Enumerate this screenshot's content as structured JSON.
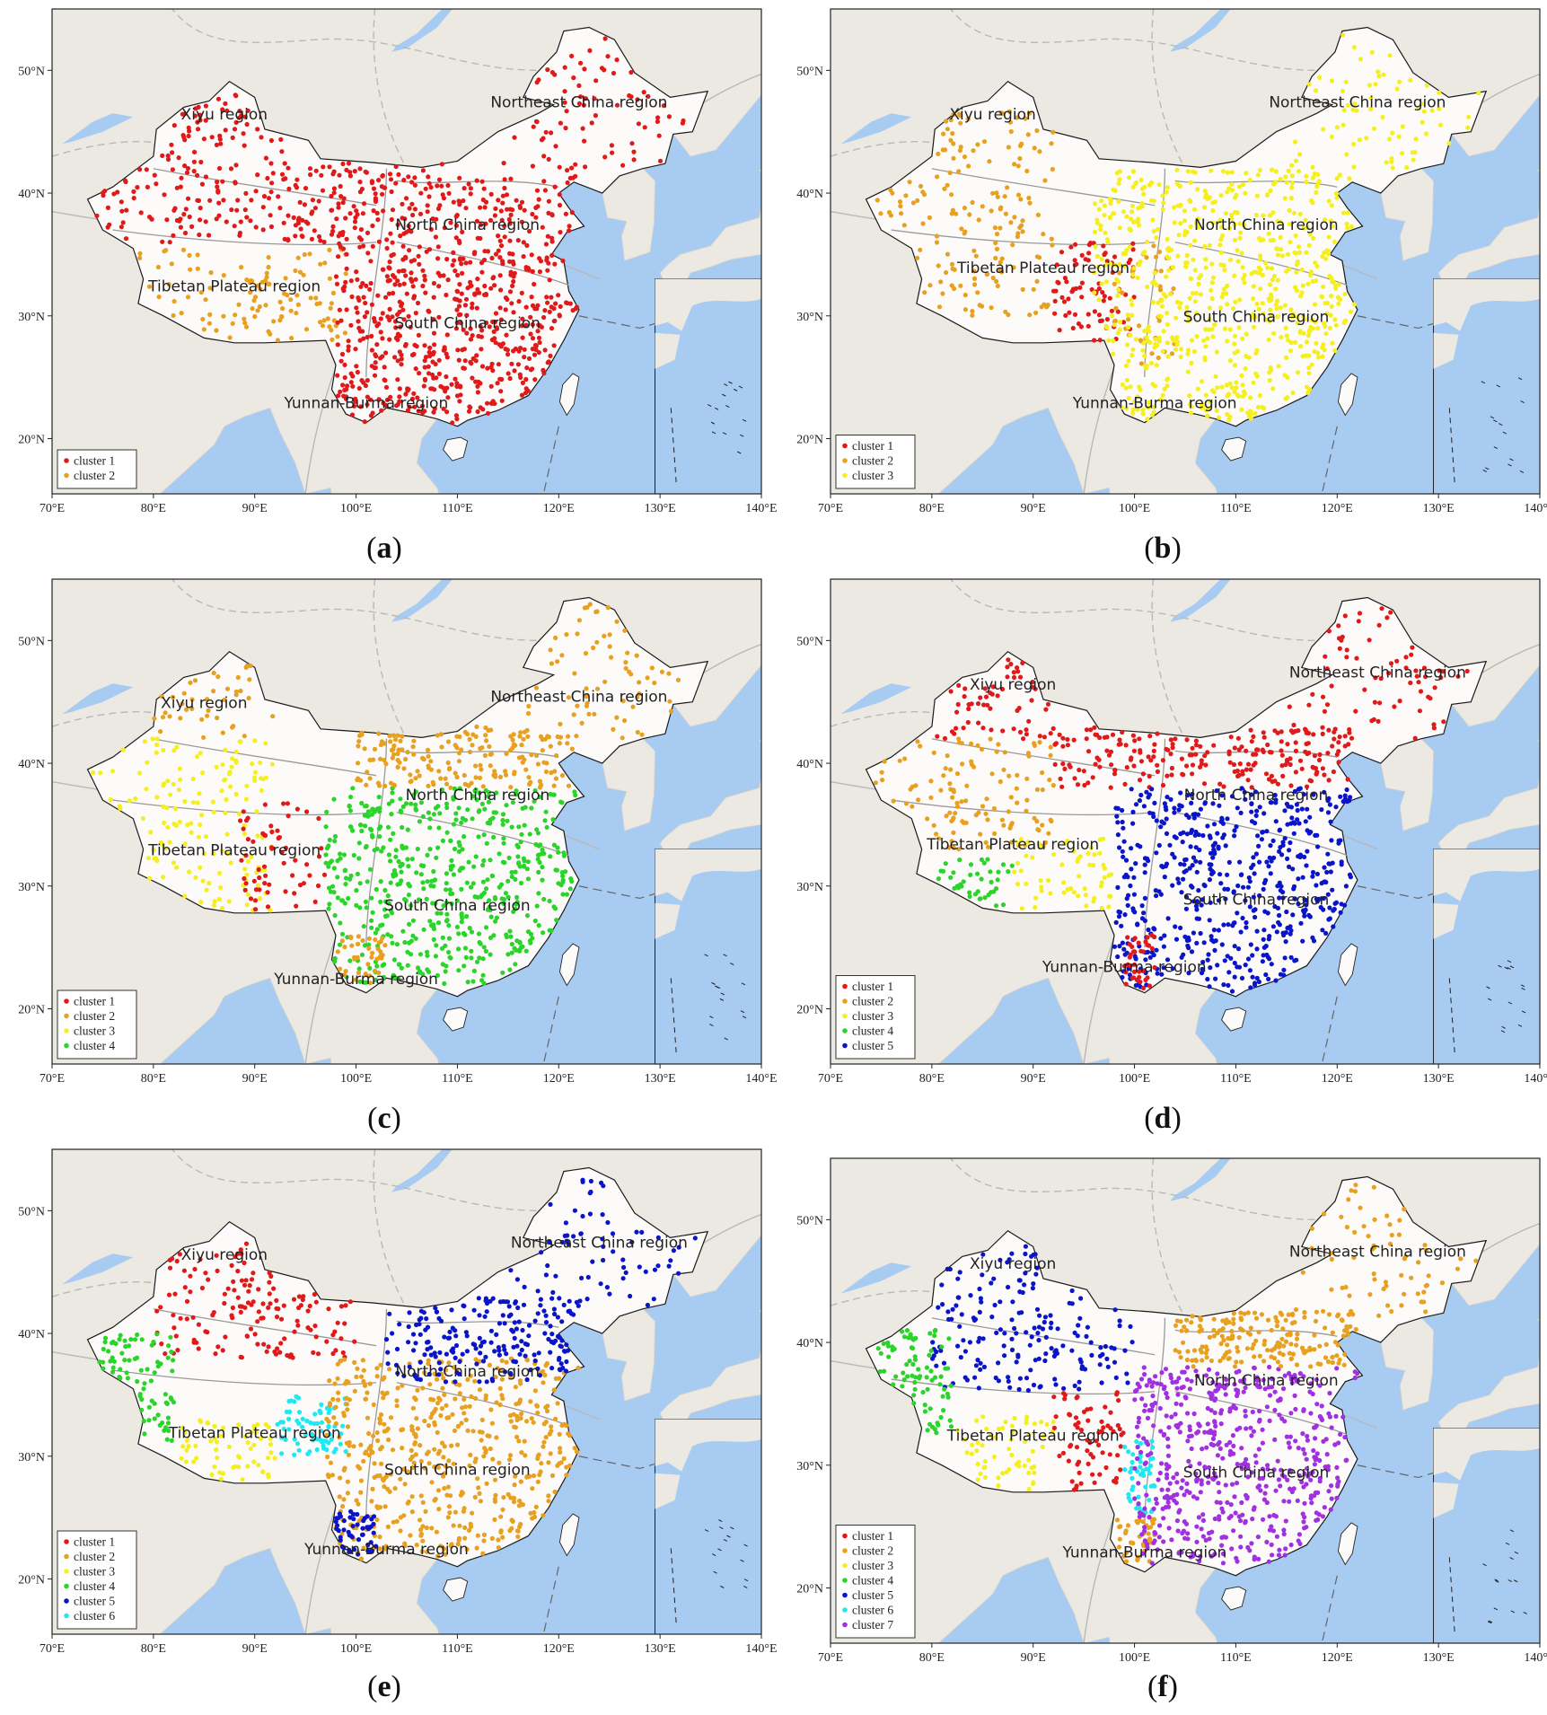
{
  "axes": {
    "x_ticks": [
      "70°E",
      "80°E",
      "90°E",
      "100°E",
      "110°E",
      "120°E",
      "130°E",
      "140°E"
    ],
    "y_ticks": [
      "20°N",
      "30°N",
      "40°N",
      "50°N"
    ],
    "lon_range": [
      70,
      140
    ],
    "lat_range": [
      15.5,
      55
    ]
  },
  "colors": {
    "ocean": "#a8cbf2",
    "land_outside": "#ece9e3",
    "china_land": "#fdfbfa",
    "clusters": {
      "cluster 1": "#e01a1a",
      "cluster 2": "#e8a020",
      "cluster 3": "#f5ef20",
      "cluster 4": "#2bd42b",
      "cluster 5": "#0a14c8",
      "cluster 6": "#20e8f0",
      "cluster 7": "#a030e0"
    }
  },
  "region_names": {
    "xiyu": "Xiyu region",
    "northeast": "Northeast China region",
    "north": "North China region",
    "tibet": "Tibetan Plateau region",
    "south": "South China region",
    "yunnan": "Yunnan-Burma region"
  },
  "panels": [
    {
      "id": "a",
      "caption": "a",
      "legend": [
        "cluster 1",
        "cluster 2"
      ],
      "regions": {
        "xiyu": [
          87,
          46
        ],
        "northeast": [
          122,
          47
        ],
        "north": [
          111,
          37
        ],
        "tibet": [
          88,
          32
        ],
        "south": [
          111,
          29
        ],
        "yunnan": [
          101,
          22.5
        ]
      },
      "zones": [
        {
          "c": "cluster 2",
          "lon": [
            74,
            99
          ],
          "lat": [
            28,
            35.5
          ],
          "n": 110
        },
        {
          "c": "cluster 1",
          "lon": [
            74,
            93
          ],
          "lat": [
            36,
            48
          ],
          "n": 170
        },
        {
          "c": "cluster 1",
          "lon": [
            93,
            122
          ],
          "lat": [
            36,
            42.5
          ],
          "n": 260
        },
        {
          "c": "cluster 1",
          "lon": [
            98,
            122
          ],
          "lat": [
            21,
            36
          ],
          "n": 560
        },
        {
          "c": "cluster 1",
          "lon": [
            115,
            134
          ],
          "lat": [
            42,
            53
          ],
          "n": 70
        }
      ]
    },
    {
      "id": "b",
      "caption": "b",
      "legend": [
        "cluster 1",
        "cluster 2",
        "cluster 3"
      ],
      "regions": {
        "xiyu": [
          86,
          46
        ],
        "northeast": [
          122,
          47
        ],
        "north": [
          113,
          37
        ],
        "tibet": [
          91,
          33.5
        ],
        "south": [
          112,
          29.5
        ],
        "yunnan": [
          102,
          22.5
        ]
      },
      "zones": [
        {
          "c": "cluster 2",
          "lon": [
            74,
            92
          ],
          "lat": [
            30,
            47
          ],
          "n": 170
        },
        {
          "c": "cluster 1",
          "lon": [
            92,
            100
          ],
          "lat": [
            28,
            36
          ],
          "n": 80
        },
        {
          "c": "cluster 2",
          "lon": [
            98,
            104
          ],
          "lat": [
            26,
            36
          ],
          "n": 40
        },
        {
          "c": "cluster 3",
          "lon": [
            96,
            122
          ],
          "lat": [
            21,
            42
          ],
          "n": 680
        },
        {
          "c": "cluster 3",
          "lon": [
            115,
            134
          ],
          "lat": [
            42,
            53
          ],
          "n": 70
        }
      ]
    },
    {
      "id": "c",
      "caption": "c",
      "legend": [
        "cluster 1",
        "cluster 2",
        "cluster 3",
        "cluster 4"
      ],
      "regions": {
        "xiyu": [
          85,
          44.5
        ],
        "northeast": [
          122,
          45
        ],
        "north": [
          112,
          37
        ],
        "tibet": [
          88,
          32.5
        ],
        "south": [
          110,
          28
        ],
        "yunnan": [
          100,
          22
        ]
      },
      "zones": [
        {
          "c": "cluster 2",
          "lon": [
            80,
            92
          ],
          "lat": [
            42,
            48
          ],
          "n": 40
        },
        {
          "c": "cluster 3",
          "lon": [
            74,
            92
          ],
          "lat": [
            28,
            42
          ],
          "n": 150
        },
        {
          "c": "cluster 1",
          "lon": [
            88,
            97
          ],
          "lat": [
            28,
            37
          ],
          "n": 60
        },
        {
          "c": "cluster 4",
          "lon": [
            97,
            122
          ],
          "lat": [
            22,
            38
          ],
          "n": 560
        },
        {
          "c": "cluster 2",
          "lon": [
            100,
            122
          ],
          "lat": [
            38,
            43
          ],
          "n": 180
        },
        {
          "c": "cluster 2",
          "lon": [
            98,
            103
          ],
          "lat": [
            22,
            26
          ],
          "n": 40
        },
        {
          "c": "cluster 2",
          "lon": [
            115,
            134
          ],
          "lat": [
            42,
            53
          ],
          "n": 70
        }
      ]
    },
    {
      "id": "d",
      "caption": "d",
      "legend": [
        "cluster 1",
        "cluster 2",
        "cluster 3",
        "cluster 4",
        "cluster 5"
      ],
      "regions": {
        "xiyu": [
          88,
          46
        ],
        "northeast": [
          124,
          47
        ],
        "north": [
          112,
          37
        ],
        "tibet": [
          88,
          33
        ],
        "south": [
          112,
          28.5
        ],
        "yunnan": [
          99,
          23
        ]
      },
      "zones": [
        {
          "c": "cluster 1",
          "lon": [
            80,
            92
          ],
          "lat": [
            42,
            49
          ],
          "n": 60
        },
        {
          "c": "cluster 2",
          "lon": [
            74,
            92
          ],
          "lat": [
            33,
            42
          ],
          "n": 120
        },
        {
          "c": "cluster 4",
          "lon": [
            80,
            88
          ],
          "lat": [
            28,
            32.5
          ],
          "n": 40
        },
        {
          "c": "cluster 3",
          "lon": [
            88,
            98
          ],
          "lat": [
            28,
            34
          ],
          "n": 60
        },
        {
          "c": "cluster 1",
          "lon": [
            92,
            122
          ],
          "lat": [
            38,
            43
          ],
          "n": 220
        },
        {
          "c": "cluster 5",
          "lon": [
            98,
            122
          ],
          "lat": [
            21,
            38
          ],
          "n": 560
        },
        {
          "c": "cluster 1",
          "lon": [
            99,
            102
          ],
          "lat": [
            21,
            26
          ],
          "n": 40
        },
        {
          "c": "cluster 1",
          "lon": [
            115,
            134
          ],
          "lat": [
            42,
            53
          ],
          "n": 70
        }
      ]
    },
    {
      "id": "e",
      "caption": "e",
      "legend": [
        "cluster 1",
        "cluster 2",
        "cluster 3",
        "cluster 4",
        "cluster 5",
        "cluster 6"
      ],
      "regions": {
        "xiyu": [
          87,
          46
        ],
        "northeast": [
          124,
          47
        ],
        "north": [
          111,
          36.5
        ],
        "tibet": [
          90,
          31.5
        ],
        "south": [
          110,
          28.5
        ],
        "yunnan": [
          103,
          22
        ]
      },
      "zones": [
        {
          "c": "cluster 1",
          "lon": [
            80,
            100
          ],
          "lat": [
            38,
            48
          ],
          "n": 150
        },
        {
          "c": "cluster 4",
          "lon": [
            74,
            82
          ],
          "lat": [
            30,
            40
          ],
          "n": 80
        },
        {
          "c": "cluster 3",
          "lon": [
            82,
            92
          ],
          "lat": [
            28,
            33
          ],
          "n": 60
        },
        {
          "c": "cluster 6",
          "lon": [
            92,
            99
          ],
          "lat": [
            30,
            35
          ],
          "n": 70
        },
        {
          "c": "cluster 2",
          "lon": [
            97,
            122
          ],
          "lat": [
            21,
            38
          ],
          "n": 520
        },
        {
          "c": "cluster 5",
          "lon": [
            103,
            122
          ],
          "lat": [
            36,
            43
          ],
          "n": 200
        },
        {
          "c": "cluster 5",
          "lon": [
            98,
            102
          ],
          "lat": [
            22,
            25.5
          ],
          "n": 50
        },
        {
          "c": "cluster 5",
          "lon": [
            115,
            134
          ],
          "lat": [
            42,
            53
          ],
          "n": 70
        }
      ]
    },
    {
      "id": "f",
      "caption": "f",
      "legend": [
        "cluster 1",
        "cluster 2",
        "cluster 3",
        "cluster 4",
        "cluster 5",
        "cluster 6",
        "cluster 7"
      ],
      "regions": {
        "xiyu": [
          88,
          46
        ],
        "northeast": [
          124,
          47
        ],
        "north": [
          113,
          36.5
        ],
        "tibet": [
          90,
          32
        ],
        "south": [
          112,
          29
        ],
        "yunnan": [
          101,
          22.5
        ]
      },
      "zones": [
        {
          "c": "cluster 5",
          "lon": [
            80,
            100
          ],
          "lat": [
            36,
            48
          ],
          "n": 180
        },
        {
          "c": "cluster 4",
          "lon": [
            74,
            82
          ],
          "lat": [
            32,
            41
          ],
          "n": 80
        },
        {
          "c": "cluster 3",
          "lon": [
            82,
            92
          ],
          "lat": [
            28,
            34
          ],
          "n": 60
        },
        {
          "c": "cluster 1",
          "lon": [
            92,
            99
          ],
          "lat": [
            28,
            36
          ],
          "n": 70
        },
        {
          "c": "cluster 6",
          "lon": [
            99,
            102
          ],
          "lat": [
            26,
            32
          ],
          "n": 50
        },
        {
          "c": "cluster 2",
          "lon": [
            98,
            102
          ],
          "lat": [
            22,
            26
          ],
          "n": 40
        },
        {
          "c": "cluster 7",
          "lon": [
            100,
            122
          ],
          "lat": [
            22,
            38
          ],
          "n": 560
        },
        {
          "c": "cluster 2",
          "lon": [
            104,
            122
          ],
          "lat": [
            38,
            42.5
          ],
          "n": 180
        },
        {
          "c": "cluster 2",
          "lon": [
            115,
            134
          ],
          "lat": [
            42,
            53
          ],
          "n": 70
        }
      ]
    }
  ]
}
